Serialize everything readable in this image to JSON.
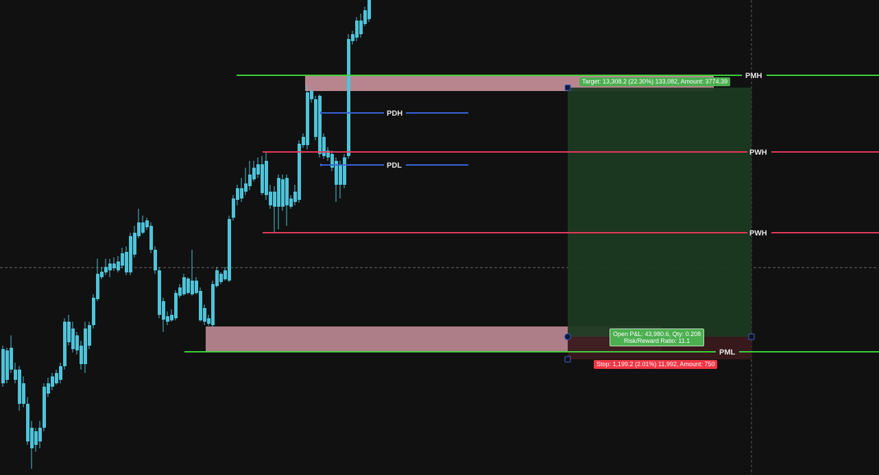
{
  "chart": {
    "background": "#111111",
    "bull_color": "#ffffff",
    "bear_color": "#4fc3d9"
  },
  "levels": {
    "pmh": {
      "label": "PMH",
      "color": "#3fd13a"
    },
    "pdh": {
      "label": "PDH",
      "color": "#3a63d8"
    },
    "pwh_upper": {
      "label": "PWH",
      "color": "#e8395e"
    },
    "pdl": {
      "label": "PDL",
      "color": "#3a63d8"
    },
    "pwh_lower": {
      "label": "PWH",
      "color": "#e8395e"
    },
    "pml": {
      "label": "PML",
      "color": "#3fd13a"
    }
  },
  "position": {
    "target_label": "Target: 13,308.2 (22.30%) 133,082, Amount: 3774.39",
    "stop_label": "Stop: 1,199.2 (2.01%) 11,992, Amount: 750",
    "pnl_line1": "Open P&L: 43,980.6, Qty: 0.208",
    "pnl_line2": "Risk/Reward Ratio: 11.1",
    "profit_color": "#1e3a22",
    "loss_color": "#3a1a1c"
  },
  "zones": {
    "supply_color": "#d69aa6",
    "demand_color": "#d69aa6"
  }
}
